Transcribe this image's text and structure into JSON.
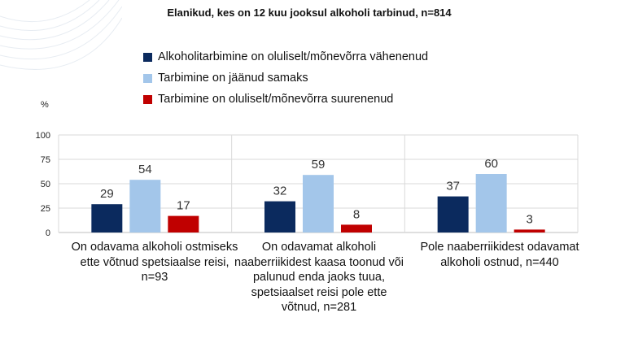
{
  "chart_data": {
    "type": "bar",
    "title": "Elanikud, kes on 12 kuu jooksul alkoholi tarbinud, n=814",
    "ylabel": "%",
    "ylim": [
      0,
      100
    ],
    "yticks": [
      "0",
      "25",
      "50",
      "75",
      "100"
    ],
    "grid": true,
    "legend_position": "top",
    "categories": [
      "On odavama alkoholi ostmiseks ette võtnud spetsiaalse reisi, n=93",
      "On odavamat alkoholi naaberriikidest kaasa toonud või palunud enda jaoks tuua, spetsiaalset reisi pole ette võtnud, n=281",
      "Pole naaberriikidest odavamat alkoholi ostnud, n=440"
    ],
    "series": [
      {
        "name": "Alkoholitarbimine on oluliselt/mõnevõrra vähenenud",
        "color": "#0b2a5e",
        "values": [
          29,
          32,
          37
        ]
      },
      {
        "name": "Tarbimine on jäänud samaks",
        "color": "#a3c6ea",
        "values": [
          54,
          59,
          60
        ]
      },
      {
        "name": "Tarbimine on oluliselt/mõnevõrra suurenenud",
        "color": "#c00000",
        "values": [
          17,
          8,
          3
        ]
      }
    ]
  }
}
